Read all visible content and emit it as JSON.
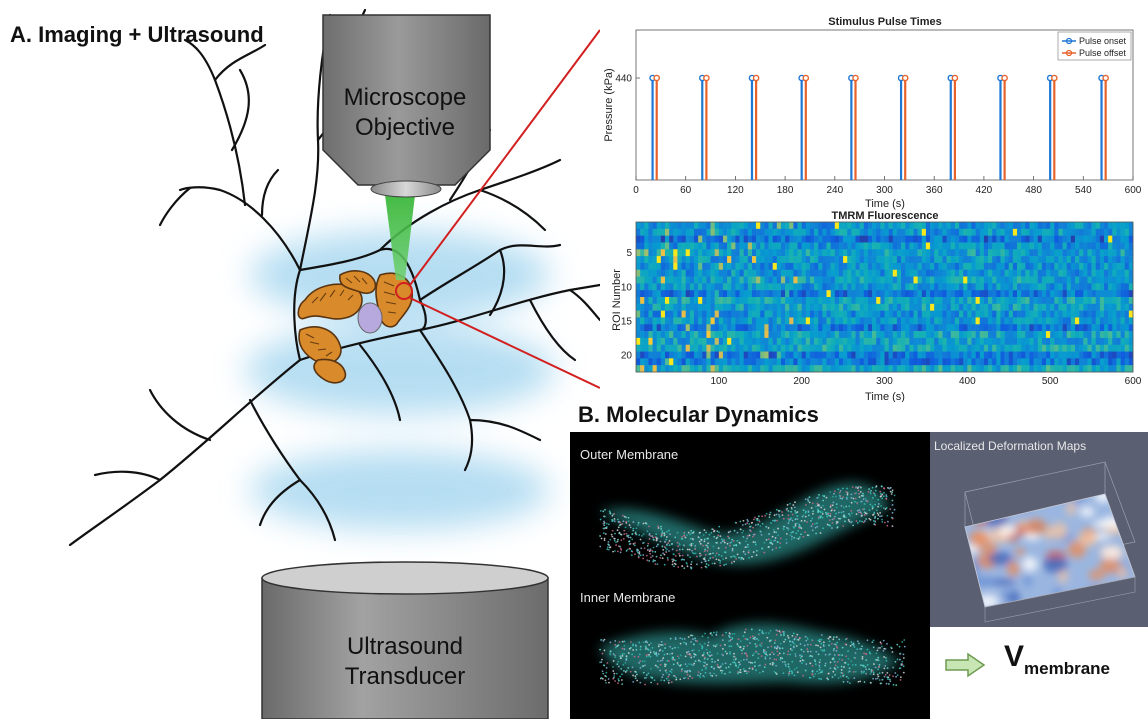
{
  "panel_a": {
    "label": "A.  Imaging + Ultrasound"
  },
  "panel_b": {
    "label": "B.  Molecular Dynamics"
  },
  "objective": {
    "line1": "Microscope",
    "line2": "Objective"
  },
  "transducer": {
    "line1": "Ultrasound",
    "line2": "Transducer"
  },
  "colors": {
    "onset": "#1f77d4",
    "offset": "#e8632b",
    "beam": "#2fb32f",
    "mito": "#d98a2b",
    "nucleus": "#b7a9dd",
    "zoom_line": "#d21f1f",
    "halo": "#a9d8f0"
  },
  "chart_data": [
    {
      "type": "stem",
      "title": "Stimulus Pulse Times",
      "xlabel": "Time (s)",
      "ylabel": "Pressure (kPa)",
      "xlim": [
        0,
        600
      ],
      "xticks": [
        0,
        60,
        120,
        180,
        240,
        300,
        360,
        420,
        480,
        540,
        600
      ],
      "yticks": [
        440
      ],
      "legend_position": "top-right",
      "series": [
        {
          "name": "Pulse onset",
          "x": [
            20,
            80,
            140,
            200,
            260,
            320,
            380,
            440,
            500,
            562
          ],
          "y": [
            440,
            440,
            440,
            440,
            440,
            440,
            440,
            440,
            440,
            440
          ]
        },
        {
          "name": "Pulse offset",
          "x": [
            25,
            85,
            145,
            205,
            265,
            325,
            385,
            445,
            505,
            567
          ],
          "y": [
            440,
            440,
            440,
            440,
            440,
            440,
            440,
            440,
            440,
            440
          ]
        }
      ]
    },
    {
      "type": "heatmap",
      "title": "TMRM Fluorescence",
      "xlabel": "Time (s)",
      "ylabel": "ROI Number",
      "xlim": [
        0,
        600
      ],
      "xticks": [
        100,
        200,
        300,
        400,
        500,
        600
      ],
      "yticks": [
        5,
        10,
        15,
        20
      ],
      "rows": 22
    }
  ],
  "md": {
    "outer_label": "Outer Membrane",
    "inner_label": "Inner Membrane",
    "deform_label": "Localized Deformation Maps",
    "vmem_main": "V",
    "vmem_sub": "membrane"
  }
}
